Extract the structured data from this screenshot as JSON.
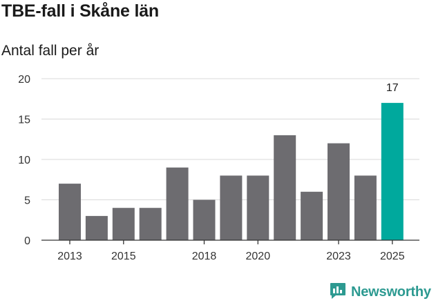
{
  "title": "TBE-fall i Skåne län",
  "subtitle": "Antal fall per år",
  "brand": {
    "name": "Newsworthy",
    "icon": "newsworthy-logo-icon",
    "color": "#2d9a91"
  },
  "colors": {
    "bar": "#6d6c70",
    "highlight": "#00a99d",
    "grid": "#d9d9d9",
    "axis": "#333333"
  },
  "chart_data": {
    "type": "bar",
    "title": "TBE-fall i Skåne län",
    "subtitle": "Antal fall per år",
    "xlabel": "",
    "ylabel": "",
    "categories": [
      "2013",
      "2014",
      "2015",
      "2016",
      "2017",
      "2018",
      "2019",
      "2020",
      "2021",
      "2022",
      "2023",
      "2024",
      "2025"
    ],
    "values": [
      7,
      3,
      4,
      4,
      9,
      5,
      8,
      8,
      13,
      6,
      12,
      8,
      17
    ],
    "x_tick_labels": [
      "2013",
      "2015",
      "2018",
      "2020",
      "2023",
      "2025"
    ],
    "y_ticks": [
      0,
      5,
      10,
      15,
      20
    ],
    "ylim": [
      0,
      20
    ],
    "grid": true,
    "highlight_category": "2025",
    "data_labels": [
      {
        "category": "2025",
        "text": "17"
      }
    ]
  }
}
